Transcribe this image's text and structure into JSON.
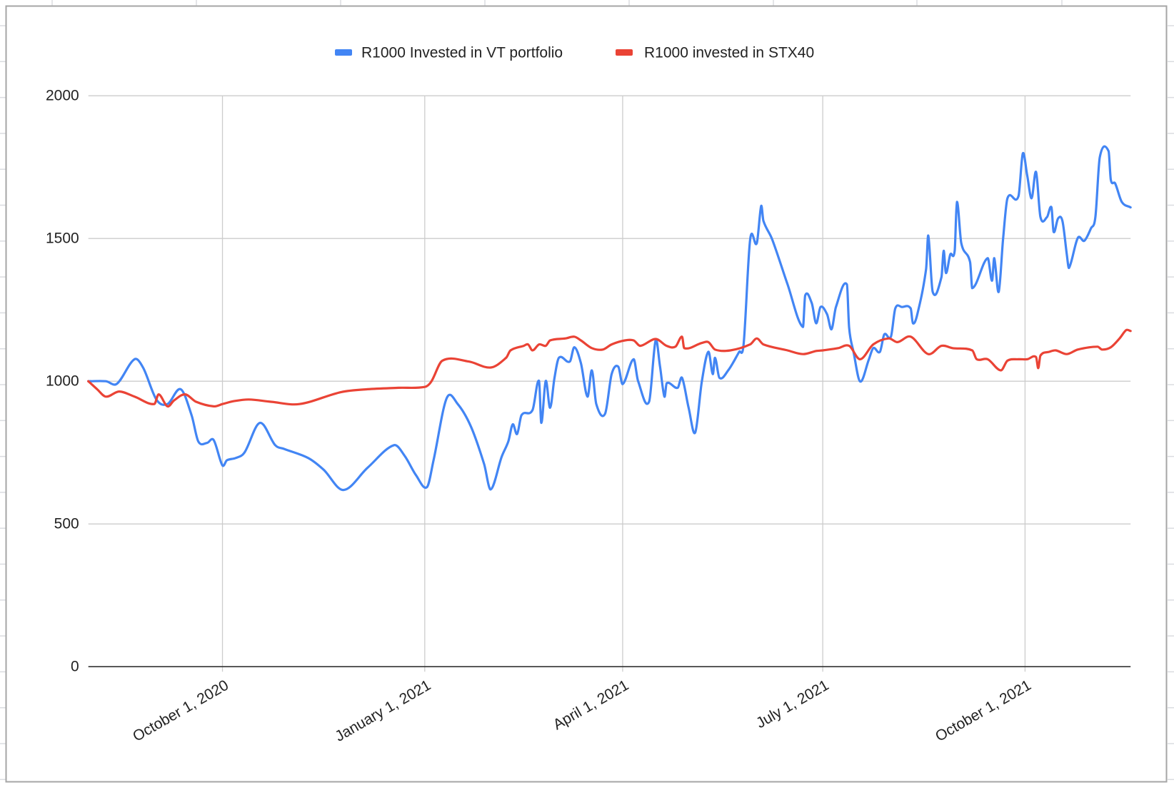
{
  "chart_data": {
    "type": "line",
    "legend": "top",
    "grid": true,
    "xlim": [
      "2020-08-01",
      "2021-11-18"
    ],
    "ylim": [
      0,
      2000
    ],
    "x_ticks": [
      {
        "value": "2020-10-01",
        "label": "October 1, 2020"
      },
      {
        "value": "2021-01-01",
        "label": "January 1, 2021"
      },
      {
        "value": "2021-04-01",
        "label": "April 1, 2021"
      },
      {
        "value": "2021-07-01",
        "label": "July 1, 2021"
      },
      {
        "value": "2021-10-01",
        "label": "October 1, 2021"
      }
    ],
    "y_ticks": [
      0,
      500,
      1000,
      1500,
      2000
    ],
    "series": [
      {
        "name": "R1000 Invested in VT portfolio",
        "color": "#4285f4",
        "x": [
          "2020-08-01",
          "2020-08-09",
          "2020-08-14",
          "2020-08-22",
          "2020-08-26",
          "2020-09-01",
          "2020-09-06",
          "2020-09-12",
          "2020-09-17",
          "2020-09-20",
          "2020-09-24",
          "2020-09-27",
          "2020-10-01",
          "2020-10-03",
          "2020-10-07",
          "2020-10-11",
          "2020-10-18",
          "2020-10-25",
          "2020-10-29",
          "2020-11-09",
          "2020-11-16",
          "2020-11-25",
          "2020-12-06",
          "2020-12-18",
          "2020-12-23",
          "2020-12-28",
          "2021-01-02",
          "2021-01-05",
          "2021-01-11",
          "2021-01-16",
          "2021-01-22",
          "2021-01-28",
          "2021-01-31",
          "2021-02-05",
          "2021-02-08",
          "2021-02-10",
          "2021-02-12",
          "2021-02-14",
          "2021-02-19",
          "2021-02-22",
          "2021-02-23",
          "2021-02-25",
          "2021-02-27",
          "2021-03-01",
          "2021-03-03",
          "2021-03-08",
          "2021-03-10",
          "2021-03-13",
          "2021-03-16",
          "2021-03-18",
          "2021-03-20",
          "2021-03-24",
          "2021-03-27",
          "2021-03-30",
          "2021-04-01",
          "2021-04-06",
          "2021-04-08",
          "2021-04-13",
          "2021-04-16",
          "2021-04-18",
          "2021-04-20",
          "2021-04-21",
          "2021-04-26",
          "2021-04-28",
          "2021-05-01",
          "2021-05-04",
          "2021-05-07",
          "2021-05-10",
          "2021-05-12",
          "2021-05-13",
          "2021-05-15",
          "2021-05-19",
          "2021-05-24",
          "2021-05-26",
          "2021-05-29",
          "2021-06-01",
          "2021-06-03",
          "2021-06-04",
          "2021-06-08",
          "2021-06-15",
          "2021-06-22",
          "2021-06-23",
          "2021-06-26",
          "2021-06-28",
          "2021-06-30",
          "2021-07-03",
          "2021-07-05",
          "2021-07-07",
          "2021-07-12",
          "2021-07-13",
          "2021-07-15",
          "2021-07-18",
          "2021-07-22",
          "2021-07-24",
          "2021-07-27",
          "2021-07-29",
          "2021-08-01",
          "2021-08-03",
          "2021-08-06",
          "2021-08-10",
          "2021-08-11",
          "2021-08-13",
          "2021-08-17",
          "2021-08-18",
          "2021-08-20",
          "2021-08-24",
          "2021-08-25",
          "2021-08-26",
          "2021-08-28",
          "2021-08-30",
          "2021-08-31",
          "2021-09-02",
          "2021-09-06",
          "2021-09-07",
          "2021-09-14",
          "2021-09-16",
          "2021-09-17",
          "2021-09-19",
          "2021-09-21",
          "2021-09-23",
          "2021-09-28",
          "2021-09-30",
          "2021-10-02",
          "2021-10-04",
          "2021-10-06",
          "2021-10-08",
          "2021-10-11",
          "2021-10-13",
          "2021-10-14",
          "2021-10-16",
          "2021-10-18",
          "2021-10-20",
          "2021-10-21",
          "2021-10-25",
          "2021-10-28",
          "2021-10-31",
          "2021-11-02",
          "2021-11-04",
          "2021-11-08",
          "2021-11-09",
          "2021-11-11",
          "2021-11-14",
          "2021-11-18"
        ],
        "y": [
          1000,
          1000,
          991,
          1077,
          1046,
          935,
          920,
          972,
          880,
          789,
          784,
          794,
          705,
          723,
          731,
          750,
          854,
          776,
          763,
          731,
          690,
          619,
          697,
          776,
          737,
          671,
          629,
          723,
          941,
          920,
          841,
          710,
          621,
          736,
          789,
          849,
          815,
          881,
          899,
          1001,
          854,
          1001,
          907,
          1012,
          1082,
          1069,
          1119,
          1064,
          946,
          1038,
          920,
          886,
          1025,
          1051,
          990,
          1077,
          1001,
          928,
          1143,
          1051,
          946,
          993,
          977,
          1012,
          907,
          820,
          999,
          1103,
          1025,
          1082,
          1012,
          1038,
          1103,
          1129,
          1497,
          1484,
          1614,
          1562,
          1497,
          1339,
          1190,
          1300,
          1274,
          1203,
          1260,
          1234,
          1182,
          1260,
          1339,
          1187,
          1103,
          999,
          1077,
          1116,
          1103,
          1164,
          1156,
          1255,
          1260,
          1255,
          1203,
          1234,
          1392,
          1510,
          1313,
          1365,
          1457,
          1379,
          1444,
          1457,
          1628,
          1484,
          1418,
          1326,
          1431,
          1352,
          1431,
          1313,
          1497,
          1641,
          1648,
          1798,
          1720,
          1641,
          1733,
          1575,
          1575,
          1609,
          1523,
          1570,
          1562,
          1444,
          1397,
          1502,
          1492,
          1536,
          1575,
          1785,
          1806,
          1706,
          1693,
          1628,
          1609
        ]
      },
      {
        "name": "R1000 invested in STX40",
        "color": "#ea4335",
        "x": [
          "2020-08-01",
          "2020-08-05",
          "2020-08-09",
          "2020-08-15",
          "2020-08-22",
          "2020-08-31",
          "2020-09-02",
          "2020-09-06",
          "2020-09-09",
          "2020-09-14",
          "2020-09-19",
          "2020-09-27",
          "2020-10-01",
          "2020-10-06",
          "2020-10-13",
          "2020-10-23",
          "2020-11-05",
          "2020-11-24",
          "2020-12-06",
          "2020-12-20",
          "2021-01-01",
          "2021-01-04",
          "2021-01-09",
          "2021-01-21",
          "2021-01-31",
          "2021-02-07",
          "2021-02-09",
          "2021-02-15",
          "2021-02-17",
          "2021-02-19",
          "2021-02-22",
          "2021-02-25",
          "2021-02-27",
          "2021-03-06",
          "2021-03-10",
          "2021-03-13",
          "2021-03-18",
          "2021-03-23",
          "2021-03-27",
          "2021-04-02",
          "2021-04-06",
          "2021-04-09",
          "2021-04-16",
          "2021-04-21",
          "2021-04-25",
          "2021-04-28",
          "2021-04-29",
          "2021-05-07",
          "2021-05-10",
          "2021-05-13",
          "2021-05-20",
          "2021-05-29",
          "2021-06-01",
          "2021-06-04",
          "2021-06-15",
          "2021-06-22",
          "2021-06-28",
          "2021-07-01",
          "2021-07-08",
          "2021-07-13",
          "2021-07-18",
          "2021-07-24",
          "2021-07-31",
          "2021-08-04",
          "2021-08-10",
          "2021-08-18",
          "2021-08-24",
          "2021-08-29",
          "2021-09-07",
          "2021-09-09",
          "2021-09-14",
          "2021-09-20",
          "2021-09-23",
          "2021-09-28",
          "2021-10-02",
          "2021-10-06",
          "2021-10-07",
          "2021-10-08",
          "2021-10-12",
          "2021-10-15",
          "2021-10-20",
          "2021-10-25",
          "2021-11-03",
          "2021-11-05",
          "2021-11-09",
          "2021-11-13",
          "2021-11-16",
          "2021-11-18"
        ],
        "y": [
          1000,
          972,
          946,
          964,
          946,
          920,
          954,
          912,
          933,
          954,
          928,
          912,
          920,
          930,
          936,
          928,
          920,
          962,
          972,
          977,
          980,
          999,
          1072,
          1069,
          1048,
          1082,
          1108,
          1124,
          1129,
          1108,
          1129,
          1124,
          1143,
          1150,
          1156,
          1143,
          1116,
          1111,
          1129,
          1143,
          1143,
          1124,
          1148,
          1124,
          1121,
          1156,
          1116,
          1134,
          1137,
          1111,
          1108,
          1129,
          1150,
          1129,
          1108,
          1095,
          1106,
          1108,
          1116,
          1124,
          1077,
          1129,
          1150,
          1137,
          1156,
          1095,
          1124,
          1116,
          1108,
          1077,
          1077,
          1038,
          1072,
          1077,
          1077,
          1085,
          1046,
          1090,
          1103,
          1108,
          1095,
          1111,
          1121,
          1111,
          1119,
          1150,
          1179,
          1176
        ]
      }
    ]
  }
}
